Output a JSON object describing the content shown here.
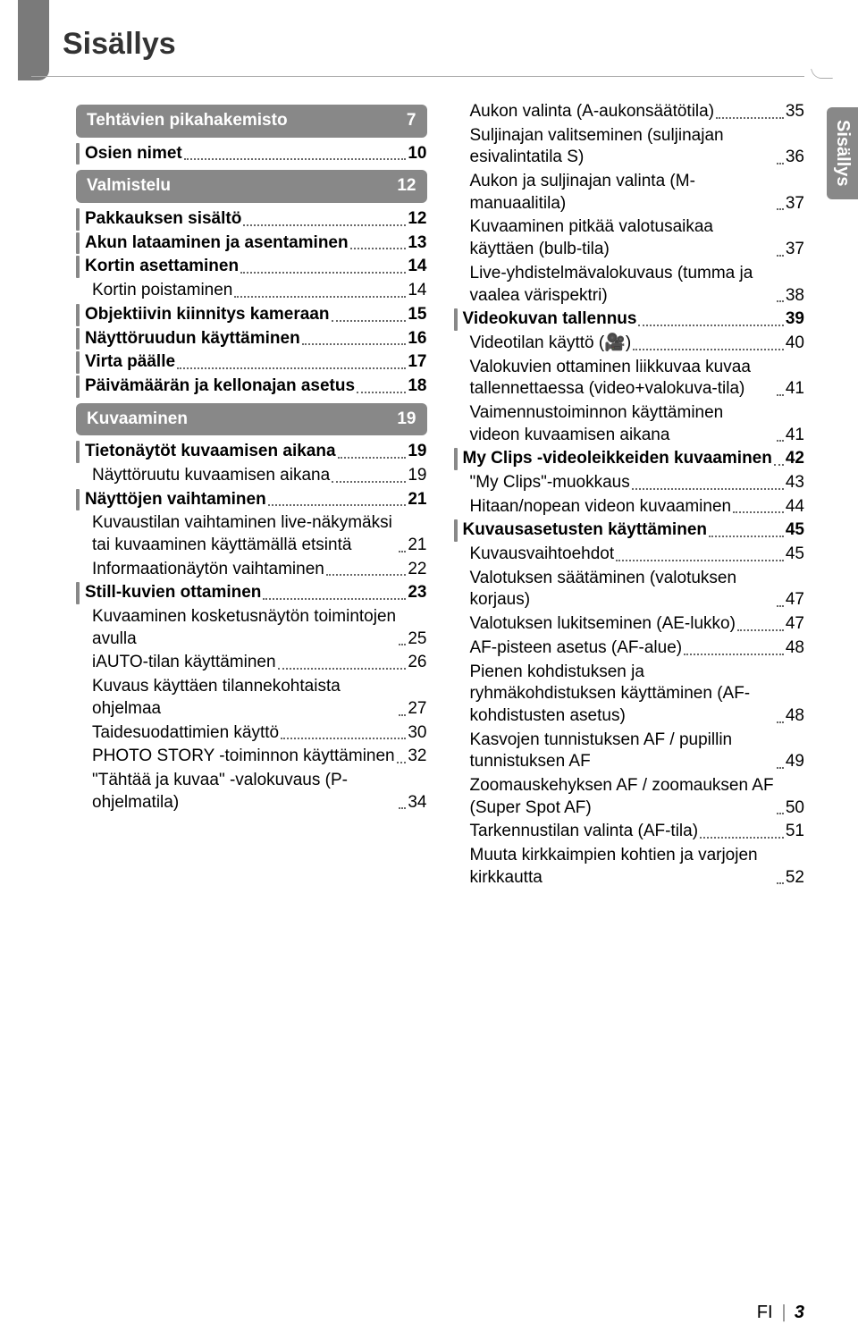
{
  "title": "Sisällys",
  "side_tab": "Sisällys",
  "footer": {
    "lang": "FI",
    "page": "3"
  },
  "colors": {
    "tab_bg": "#888888",
    "tab_text": "#ffffff",
    "text": "#333333",
    "dots": "#666666"
  },
  "left": [
    {
      "type": "chapter",
      "label": "Tehtävien pikahakemisto",
      "page": "7"
    },
    {
      "type": "l0",
      "label": "Osien nimet",
      "page": "10"
    },
    {
      "type": "chapter",
      "label": "Valmistelu",
      "page": "12"
    },
    {
      "type": "l0",
      "label": "Pakkauksen sisältö",
      "page": "12"
    },
    {
      "type": "l0",
      "label": "Akun lataaminen ja asentaminen",
      "page": "13"
    },
    {
      "type": "l0",
      "label": "Kortin asettaminen",
      "page": "14"
    },
    {
      "type": "l1",
      "label": "Kortin poistaminen",
      "page": "14"
    },
    {
      "type": "l0",
      "label": "Objektiivin kiinnitys kameraan",
      "page": "15",
      "tight": true
    },
    {
      "type": "l0",
      "label": "Näyttöruudun käyttäminen",
      "page": "16"
    },
    {
      "type": "l0",
      "label": "Virta päälle",
      "page": "17"
    },
    {
      "type": "l0",
      "label": "Päivämäärän ja kellonajan asetus",
      "page": "18"
    },
    {
      "type": "chapter",
      "label": "Kuvaaminen",
      "page": "19"
    },
    {
      "type": "l0",
      "label": "Tietonäytöt kuvaamisen aikana",
      "page": "19"
    },
    {
      "type": "l1",
      "label": "Näyttöruutu kuvaamisen aikana",
      "page": "19"
    },
    {
      "type": "l0",
      "label": "Näyttöjen vaihtaminen",
      "page": "21"
    },
    {
      "type": "l1",
      "label": "Kuvaustilan vaihtaminen live-näkymäksi tai kuvaaminen käyttämällä etsintä",
      "page": "21"
    },
    {
      "type": "l1",
      "label": "Informaationäytön vaihtaminen",
      "page": "22"
    },
    {
      "type": "l0",
      "label": "Still-kuvien ottaminen",
      "page": "23"
    },
    {
      "type": "l1",
      "label": "Kuvaaminen kosketusnäytön toimintojen avulla",
      "page": "25"
    },
    {
      "type": "l1",
      "label": "iAUTO-tilan käyttäminen",
      "page": "26"
    },
    {
      "type": "l1",
      "label": "Kuvaus käyttäen tilannekohtaista ohjelmaa",
      "page": "27"
    },
    {
      "type": "l1",
      "label": "Taidesuodattimien käyttö",
      "page": "30"
    },
    {
      "type": "l1",
      "label": "PHOTO STORY -toiminnon käyttäminen",
      "page": "32"
    },
    {
      "type": "l1",
      "label": "\"Tähtää ja kuvaa\" -valokuvaus (P-ohjelmatila)",
      "page": "34"
    }
  ],
  "right": [
    {
      "type": "l1",
      "label": "Aukon valinta (A-aukonsäätötila)",
      "page": "35"
    },
    {
      "type": "l1",
      "label": "Suljinajan valitseminen (suljinajan esivalintatila S)",
      "page": "36"
    },
    {
      "type": "l1",
      "label": "Aukon ja suljinajan valinta (M-manuaalitila)",
      "page": "37"
    },
    {
      "type": "l1",
      "label": "Kuvaaminen pitkää valotusaikaa käyttäen (bulb-tila)",
      "page": "37"
    },
    {
      "type": "l1",
      "label": "Live-yhdistelmävalokuvaus (tumma ja vaalea värispektri)",
      "page": "38"
    },
    {
      "type": "l0",
      "label": "Videokuvan tallennus",
      "page": "39"
    },
    {
      "type": "l1",
      "label": "Videotilan käyttö (🎥)",
      "page": "40"
    },
    {
      "type": "l1",
      "label": "Valokuvien ottaminen liikkuvaa kuvaa tallennettaessa (video+valokuva-tila)",
      "page": "41"
    },
    {
      "type": "l1",
      "label": "Vaimennustoiminnon käyttäminen videon kuvaamisen aikana",
      "page": "41"
    },
    {
      "type": "l0",
      "label": "My Clips -videoleikkeiden kuvaaminen",
      "page": "42"
    },
    {
      "type": "l1",
      "label": "\"My Clips\"-muokkaus",
      "page": "43"
    },
    {
      "type": "l1",
      "label": "Hitaan/nopean videon kuvaaminen",
      "page": "44"
    },
    {
      "type": "l0",
      "label": "Kuvausasetusten käyttäminen",
      "page": "45",
      "tight": true
    },
    {
      "type": "l1",
      "label": "Kuvausvaihtoehdot",
      "page": "45"
    },
    {
      "type": "l1",
      "label": "Valotuksen säätäminen (valotuksen korjaus)",
      "page": "47"
    },
    {
      "type": "l1",
      "label": "Valotuksen lukitseminen (AE-lukko)",
      "page": "47"
    },
    {
      "type": "l1",
      "label": "AF-pisteen asetus (AF-alue)",
      "page": "48"
    },
    {
      "type": "l1",
      "label": "Pienen kohdistuksen ja ryhmäkohdistuksen käyttäminen (AF-kohdistusten asetus)",
      "page": "48"
    },
    {
      "type": "l1",
      "label": "Kasvojen tunnistuksen AF / pupillin tunnistuksen AF",
      "page": "49"
    },
    {
      "type": "l1",
      "label": "Zoomauskehyksen AF / zoomauksen AF (Super Spot AF)",
      "page": "50"
    },
    {
      "type": "l1",
      "label": "Tarkennustilan valinta (AF-tila)",
      "page": "51"
    },
    {
      "type": "l1",
      "label": "Muuta kirkkaimpien kohtien ja varjojen kirkkautta",
      "page": "52"
    }
  ]
}
